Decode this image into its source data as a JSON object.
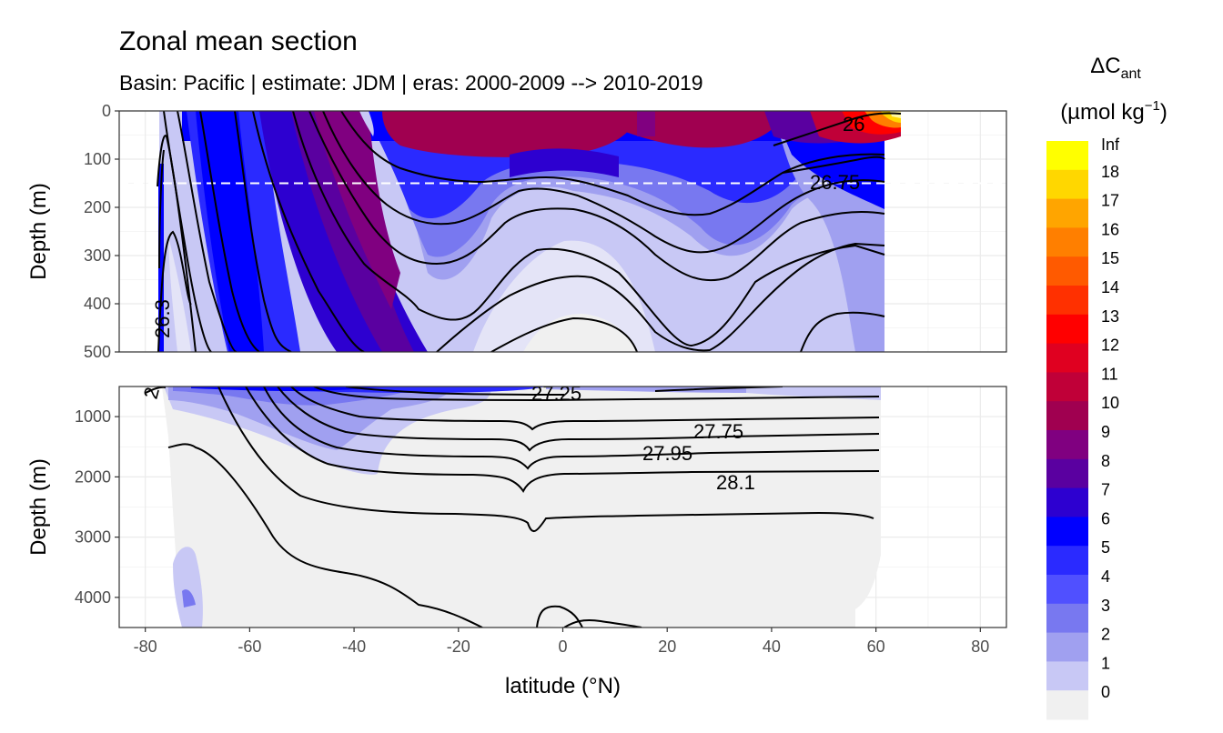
{
  "header": {
    "title": "Zonal mean section",
    "subtitle": "Basin: Pacific | estimate: JDM  | eras: 2000-2009 --> 2010-2019"
  },
  "chart_data": {
    "type": "heatmap",
    "title": "Zonal mean section",
    "subtitle": "Basin: Pacific | estimate: JDM  | eras: 2000-2009 --> 2010-2019",
    "xlabel": "latitude (°N)",
    "ylabel": "Depth (m)",
    "xlim": [
      -85,
      85
    ],
    "x_ticks": [
      -80,
      -60,
      -40,
      -20,
      0,
      20,
      40,
      60,
      80
    ],
    "x_tick_labels": [
      "-80",
      "-60",
      "-40",
      "-20",
      "0",
      "20",
      "40",
      "60",
      "80"
    ],
    "panels": [
      {
        "name": "upper",
        "ylim": [
          0,
          500
        ],
        "y_ticks": [
          0,
          100,
          200,
          300,
          400,
          500
        ],
        "y_tick_labels": [
          "0",
          "100",
          "200",
          "300",
          "400",
          "500"
        ],
        "reference_line_depth": 150
      },
      {
        "name": "lower",
        "ylim": [
          500,
          4500
        ],
        "y_ticks": [
          1000,
          2000,
          3000,
          4000
        ],
        "y_tick_labels": [
          "1000",
          "2000",
          "3000",
          "4000"
        ]
      }
    ],
    "legend": {
      "title_main": "ΔC",
      "title_sub": "ant",
      "units_pre": "(µmol kg",
      "units_sup": "−1",
      "units_post": ")",
      "position": "right",
      "breaks": [
        "Inf",
        "18",
        "17",
        "16",
        "15",
        "14",
        "13",
        "12",
        "11",
        "10",
        "9",
        "8",
        "7",
        "6",
        "5",
        "4",
        "3",
        "2",
        "1",
        "0"
      ],
      "colors": [
        "#ffff00",
        "#ffd700",
        "#ffa500",
        "#ff7f00",
        "#ff5a00",
        "#ff3000",
        "#ff0000",
        "#e00020",
        "#c00038",
        "#a00050",
        "#800080",
        "#5a00a0",
        "#2d00d0",
        "#0000ff",
        "#2a2aff",
        "#5050ff",
        "#7878f0",
        "#a0a0f0",
        "#c8c8f5",
        "#f0f0f0"
      ]
    },
    "isopycnal_labels": [
      {
        "text": "26",
        "lat": 53,
        "depth": 25
      },
      {
        "text": "26.75",
        "lat": 52,
        "depth": 150
      },
      {
        "text": "26.3",
        "lat": -77,
        "depth": 415
      },
      {
        "text": "2",
        "lat": -80,
        "depth": 610
      },
      {
        "text": "27.25",
        "lat": -5,
        "depth": 620
      },
      {
        "text": "27.75",
        "lat": 31,
        "depth": 1220
      },
      {
        "text": "27.95",
        "lat": 21,
        "depth": 1610
      },
      {
        "text": "28.1",
        "lat": 34,
        "depth": 2070
      }
    ]
  }
}
